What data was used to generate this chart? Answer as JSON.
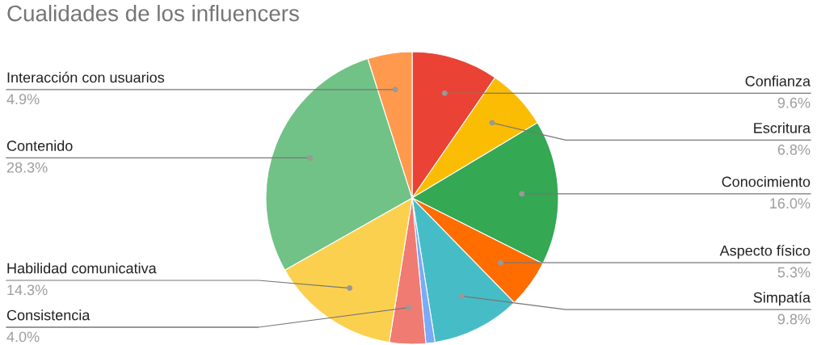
{
  "chart_data": {
    "type": "pie",
    "title": "Cualidades de los influencers",
    "categories": [
      "Confianza",
      "Escritura",
      "Conocimiento",
      "Aspecto físico",
      "Simpatía",
      null,
      "Consistencia",
      "Habilidad comunicativa",
      "Contenido",
      "Interacción con usuarios"
    ],
    "values": [
      9.6,
      6.8,
      16.0,
      5.3,
      9.8,
      1.0,
      4.0,
      14.3,
      28.3,
      4.9
    ],
    "value_labels": [
      "9.6%",
      "6.8%",
      "16.0%",
      "5.3%",
      "9.8%",
      null,
      "4.0%",
      "14.3%",
      "28.3%",
      "4.9%"
    ],
    "colors": [
      "#ea4335",
      "#fbbc04",
      "#34a853",
      "#ff6d01",
      "#46bdc6",
      "#7baaf7",
      "#f07b72",
      "#fcd04f",
      "#71c287",
      "#ff994d"
    ],
    "legend": false
  }
}
